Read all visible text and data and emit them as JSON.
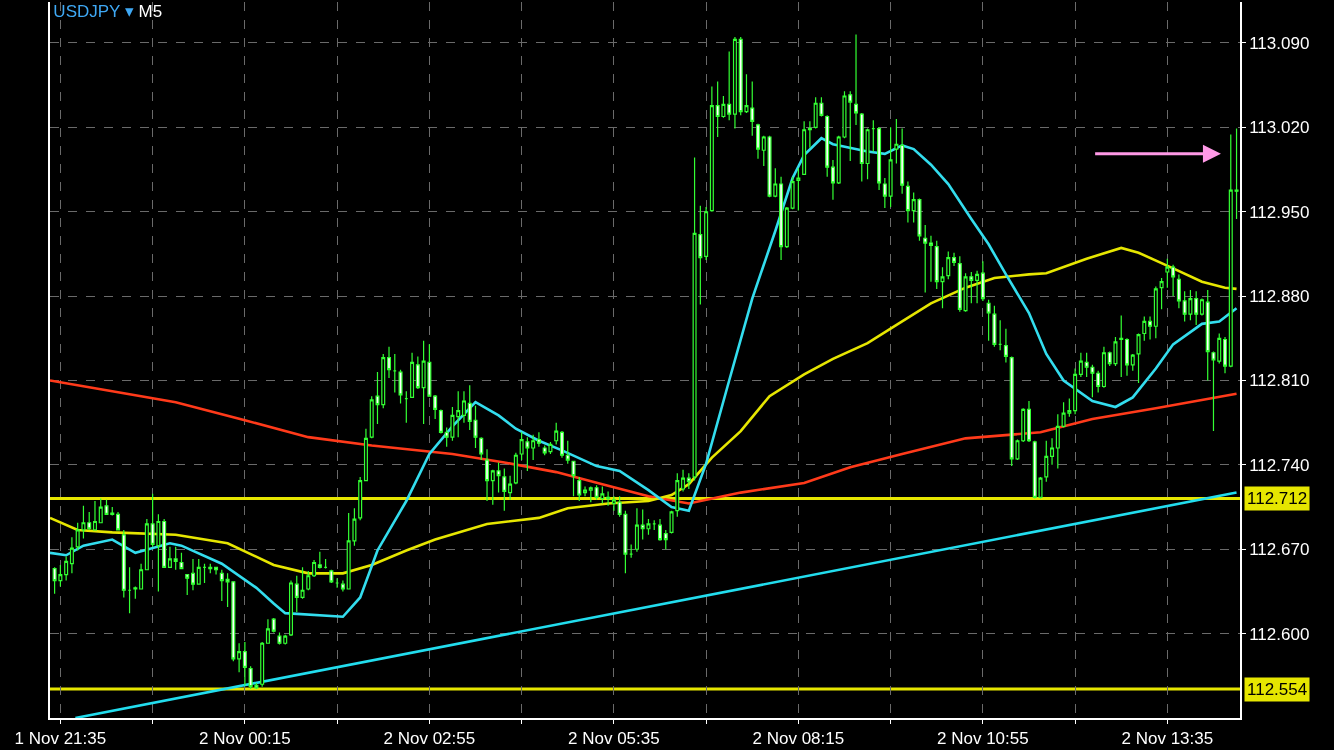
{
  "chart_data": {
    "type": "candlestick",
    "title": "USDJPY ▾ M5",
    "color": "#33ff33",
    "grid": true,
    "x": [
      "--11-01T21:30",
      "--11-01T21:35",
      "--11-01T21:40",
      "--11-01T21:45",
      "--11-01T21:50",
      "--11-01T21:55",
      "--11-01T22:00",
      "--11-01T22:05",
      "--11-01T22:10",
      "--11-01T22:15",
      "--11-01T22:20",
      "--11-01T22:25",
      "--11-01T22:30",
      "--11-01T22:35",
      "--11-01T22:40",
      "--11-01T22:45",
      "--11-01T22:50",
      "--11-01T22:55",
      "--11-01T23:00",
      "--11-01T23:05",
      "--11-01T23:10",
      "--11-01T23:15",
      "--11-01T23:20",
      "--11-01T23:25",
      "--11-01T23:30",
      "--11-01T23:35",
      "--11-01T23:40",
      "--11-01T23:45",
      "--11-01T23:50",
      "--11-01T23:55",
      "--11-02T00:00",
      "--11-02T00:05",
      "--11-02T00:10",
      "--11-02T00:15",
      "--11-02T00:20",
      "--11-02T00:25",
      "--11-02T00:30",
      "--11-02T00:35",
      "--11-02T00:40",
      "--11-02T00:45",
      "--11-02T00:50",
      "--11-02T00:55",
      "--11-02T01:00",
      "--11-02T01:05",
      "--11-02T01:10",
      "--11-02T01:15",
      "--11-02T01:20",
      "--11-02T01:25",
      "--11-02T01:30",
      "--11-02T01:35",
      "--11-02T01:40",
      "--11-02T01:45",
      "--11-02T01:50",
      "--11-02T01:55",
      "--11-02T02:00",
      "--11-02T02:05",
      "--11-02T02:10",
      "--11-02T02:15",
      "--11-02T02:20",
      "--11-02T02:25",
      "--11-02T02:30",
      "--11-02T02:35",
      "--11-02T02:40",
      "--11-02T02:45",
      "--11-02T02:50",
      "--11-02T02:55",
      "--11-02T03:00",
      "--11-02T03:05",
      "--11-02T03:10",
      "--11-02T03:15",
      "--11-02T03:20",
      "--11-02T03:25",
      "--11-02T03:30",
      "--11-02T03:35",
      "--11-02T03:40",
      "--11-02T03:45",
      "--11-02T03:50",
      "--11-02T03:55",
      "--11-02T04:00",
      "--11-02T04:05",
      "--11-02T04:10",
      "--11-02T04:15",
      "--11-02T04:20",
      "--11-02T04:25",
      "--11-02T04:30",
      "--11-02T04:35",
      "--11-02T04:40",
      "--11-02T04:45",
      "--11-02T04:50",
      "--11-02T04:55",
      "--11-02T05:00",
      "--11-02T05:05",
      "--11-02T05:10",
      "--11-02T05:15",
      "--11-02T05:20",
      "--11-02T05:25",
      "--11-02T05:30",
      "--11-02T05:35",
      "--11-02T05:40",
      "--11-02T05:45",
      "--11-02T05:50",
      "--11-02T05:55",
      "--11-02T06:00",
      "--11-02T06:05",
      "--11-02T06:10",
      "--11-02T06:15",
      "--11-02T06:20",
      "--11-02T06:25",
      "--11-02T06:30",
      "--11-02T06:35",
      "--11-02T06:40",
      "--11-02T06:45",
      "--11-02T06:50",
      "--11-02T06:55",
      "--11-02T07:00",
      "--11-02T07:05",
      "--11-02T07:10",
      "--11-02T07:15",
      "--11-02T07:20",
      "--11-02T07:25",
      "--11-02T07:30",
      "--11-02T07:35",
      "--11-02T07:40",
      "--11-02T07:45",
      "--11-02T07:50",
      "--11-02T07:55",
      "--11-02T08:00",
      "--11-02T08:05",
      "--11-02T08:10",
      "--11-02T08:15",
      "--11-02T08:20",
      "--11-02T08:25",
      "--11-02T08:30",
      "--11-02T08:35",
      "--11-02T08:40",
      "--11-02T08:45",
      "--11-02T08:50",
      "--11-02T08:55",
      "--11-02T09:00",
      "--11-02T09:05",
      "--11-02T09:10",
      "--11-02T09:15",
      "--11-02T09:20",
      "--11-02T09:25",
      "--11-02T09:30",
      "--11-02T09:35",
      "--11-02T09:40",
      "--11-02T09:45",
      "--11-02T09:50",
      "--11-02T09:55",
      "--11-02T10:00",
      "--11-02T10:05",
      "--11-02T10:10",
      "--11-02T10:15",
      "--11-02T10:20",
      "--11-02T10:25",
      "--11-02T10:30",
      "--11-02T10:35",
      "--11-02T10:40",
      "--11-02T10:45",
      "--11-02T10:50",
      "--11-02T10:55",
      "--11-02T11:00",
      "--11-02T11:05",
      "--11-02T11:10",
      "--11-02T11:15",
      "--11-02T11:20",
      "--11-02T11:25",
      "--11-02T11:30",
      "--11-02T11:35",
      "--11-02T11:40",
      "--11-02T11:45",
      "--11-02T11:50",
      "--11-02T11:55",
      "--11-02T12:00",
      "--11-02T12:05",
      "--11-02T12:10",
      "--11-02T12:15",
      "--11-02T12:20",
      "--11-02T12:25",
      "--11-02T12:30",
      "--11-02T12:35",
      "--11-02T12:40",
      "--11-02T12:45",
      "--11-02T12:50",
      "--11-02T12:55",
      "--11-02T13:00",
      "--11-02T13:05",
      "--11-02T13:10",
      "--11-02T13:15",
      "--11-02T13:20",
      "--11-02T13:25",
      "--11-02T13:30",
      "--11-02T13:35",
      "--11-02T13:40",
      "--11-02T13:45",
      "--11-02T13:50",
      "--11-02T13:55",
      "--11-02T14:00",
      "--11-02T14:05",
      "--11-02T14:10",
      "--11-02T14:15",
      "--11-02T14:20",
      "--11-02T14:25",
      "--11-02T14:30",
      "--11-02T14:35"
    ],
    "ohlc": [
      [
        112.654,
        112.655,
        112.633,
        112.644
      ],
      [
        112.644,
        112.657,
        112.639,
        112.649
      ],
      [
        112.649,
        112.664,
        112.644,
        112.66
      ],
      [
        112.658,
        112.68,
        112.65,
        112.671
      ],
      [
        112.672,
        112.692,
        112.669,
        112.686
      ],
      [
        112.686,
        112.706,
        112.679,
        112.692
      ],
      [
        112.692,
        112.701,
        112.686,
        112.687
      ],
      [
        112.686,
        112.71,
        112.686,
        112.693
      ],
      [
        112.692,
        112.712,
        112.692,
        112.705
      ],
      [
        112.706,
        112.711,
        112.699,
        112.699
      ],
      [
        112.7,
        112.705,
        112.698,
        112.699
      ],
      [
        112.699,
        112.701,
        112.686,
        112.686
      ],
      [
        112.682,
        112.686,
        112.63,
        112.636
      ],
      [
        112.636,
        112.655,
        112.617,
        112.636
      ],
      [
        112.637,
        112.639,
        112.629,
        112.638
      ],
      [
        112.637,
        112.658,
        112.637,
        112.653
      ],
      [
        112.653,
        112.695,
        112.653,
        112.691
      ],
      [
        112.691,
        112.716,
        112.672,
        112.674
      ],
      [
        112.673,
        112.699,
        112.635,
        112.693
      ],
      [
        112.693,
        112.695,
        112.655,
        112.655
      ],
      [
        112.655,
        112.672,
        112.655,
        112.662
      ],
      [
        112.662,
        112.672,
        112.653,
        112.66
      ],
      [
        112.659,
        112.667,
        112.654,
        112.654
      ],
      [
        112.649,
        112.649,
        112.632,
        112.646
      ],
      [
        112.65,
        112.662,
        112.636,
        112.641
      ],
      [
        112.641,
        112.662,
        112.641,
        112.655
      ],
      [
        112.655,
        112.658,
        112.642,
        112.655
      ],
      [
        112.655,
        112.658,
        112.65,
        112.654
      ],
      [
        112.655,
        112.655,
        112.649,
        112.653
      ],
      [
        112.65,
        112.653,
        112.627,
        112.644
      ],
      [
        112.645,
        112.65,
        112.622,
        112.643
      ],
      [
        112.643,
        112.643,
        112.577,
        112.579
      ],
      [
        112.579,
        112.592,
        112.568,
        112.585
      ],
      [
        112.585,
        112.593,
        112.557,
        112.572
      ],
      [
        112.571,
        112.573,
        112.554,
        112.556
      ],
      [
        112.557,
        112.559,
        112.554,
        112.555
      ],
      [
        112.558,
        112.593,
        112.556,
        112.592
      ],
      [
        112.592,
        112.612,
        112.592,
        112.604
      ],
      [
        112.612,
        112.613,
        112.601,
        112.602
      ],
      [
        112.598,
        112.601,
        112.591,
        112.592
      ],
      [
        112.592,
        112.599,
        112.591,
        112.598
      ],
      [
        112.599,
        112.644,
        112.598,
        112.642
      ],
      [
        112.641,
        112.648,
        112.618,
        112.63
      ],
      [
        112.63,
        112.655,
        112.629,
        112.636
      ],
      [
        112.637,
        112.652,
        112.636,
        112.648
      ],
      [
        112.648,
        112.661,
        112.647,
        112.659
      ],
      [
        112.657,
        112.668,
        112.654,
        112.655
      ],
      [
        112.655,
        112.662,
        112.654,
        112.655
      ],
      [
        112.652,
        112.653,
        112.642,
        112.643
      ],
      [
        112.642,
        112.646,
        112.638,
        112.642
      ],
      [
        112.641,
        112.644,
        112.635,
        112.637
      ],
      [
        112.637,
        112.7,
        112.637,
        112.677
      ],
      [
        112.677,
        112.704,
        112.673,
        112.695
      ],
      [
        112.696,
        112.73,
        112.694,
        112.727
      ],
      [
        112.727,
        112.77,
        112.727,
        112.762
      ],
      [
        112.763,
        112.797,
        112.762,
        112.794
      ],
      [
        112.797,
        112.817,
        112.774,
        112.79
      ],
      [
        112.79,
        112.832,
        112.787,
        112.829
      ],
      [
        112.829,
        112.838,
        112.812,
        112.819
      ],
      [
        112.818,
        112.832,
        112.8,
        112.818
      ],
      [
        112.817,
        112.819,
        112.791,
        112.798
      ],
      [
        112.795,
        112.801,
        112.775,
        112.795
      ],
      [
        112.796,
        112.833,
        112.796,
        112.825
      ],
      [
        112.823,
        112.83,
        112.803,
        112.804
      ],
      [
        112.804,
        112.843,
        112.774,
        112.826
      ],
      [
        112.825,
        112.84,
        112.797,
        112.797
      ],
      [
        112.797,
        112.798,
        112.778,
        112.786
      ],
      [
        112.785,
        112.786,
        112.766,
        112.767
      ],
      [
        112.767,
        112.771,
        112.755,
        112.763
      ],
      [
        112.763,
        112.788,
        112.76,
        112.781
      ],
      [
        112.78,
        112.801,
        112.763,
        112.785
      ],
      [
        112.781,
        112.801,
        112.775,
        112.793
      ],
      [
        112.791,
        112.806,
        112.769,
        112.776
      ],
      [
        112.777,
        112.789,
        112.754,
        112.763
      ],
      [
        112.762,
        112.763,
        112.744,
        112.749
      ],
      [
        112.744,
        112.753,
        112.71,
        112.727
      ],
      [
        112.727,
        112.736,
        112.707,
        112.735
      ],
      [
        112.735,
        112.742,
        112.717,
        112.731
      ],
      [
        112.73,
        112.737,
        112.702,
        112.718
      ],
      [
        112.717,
        112.731,
        112.711,
        112.724
      ],
      [
        112.725,
        112.75,
        112.724,
        112.748
      ],
      [
        112.749,
        112.767,
        112.744,
        112.761
      ],
      [
        112.759,
        112.763,
        112.735,
        112.754
      ],
      [
        112.754,
        112.765,
        112.744,
        112.76
      ],
      [
        112.761,
        112.767,
        112.755,
        112.758
      ],
      [
        112.754,
        112.756,
        112.748,
        112.75
      ],
      [
        112.751,
        112.759,
        112.749,
        112.757
      ],
      [
        112.76,
        112.775,
        112.757,
        112.768
      ],
      [
        112.767,
        112.768,
        112.746,
        112.748
      ],
      [
        112.748,
        112.76,
        112.741,
        112.744
      ],
      [
        112.743,
        112.743,
        112.714,
        112.731
      ],
      [
        112.727,
        112.73,
        112.71,
        112.715
      ],
      [
        112.717,
        112.722,
        112.714,
        112.719
      ],
      [
        112.719,
        112.722,
        112.709,
        112.721
      ],
      [
        112.721,
        112.723,
        112.711,
        112.713
      ],
      [
        112.712,
        112.722,
        112.708,
        112.716
      ],
      [
        112.713,
        112.718,
        112.706,
        112.712
      ],
      [
        112.708,
        112.714,
        112.702,
        112.711
      ],
      [
        112.709,
        112.714,
        112.697,
        112.699
      ],
      [
        112.699,
        112.702,
        112.65,
        112.666
      ],
      [
        112.666,
        112.674,
        112.663,
        112.666
      ],
      [
        112.67,
        112.704,
        112.668,
        112.69
      ],
      [
        112.69,
        112.703,
        112.678,
        112.687
      ],
      [
        112.687,
        112.695,
        112.682,
        112.691
      ],
      [
        112.691,
        112.694,
        112.686,
        112.691
      ],
      [
        112.69,
        112.695,
        112.677,
        112.678
      ],
      [
        112.683,
        112.686,
        112.67,
        112.678
      ],
      [
        112.684,
        112.702,
        112.683,
        112.701
      ],
      [
        112.702,
        112.733,
        112.697,
        112.727
      ],
      [
        112.72,
        112.736,
        112.718,
        112.729
      ],
      [
        112.729,
        112.733,
        112.72,
        112.726
      ],
      [
        112.73,
        112.995,
        112.727,
        112.932
      ],
      [
        112.931,
        112.955,
        112.873,
        112.912
      ],
      [
        112.913,
        112.954,
        112.91,
        112.95
      ],
      [
        112.951,
        113.054,
        112.95,
        113.038
      ],
      [
        113.038,
        113.058,
        113.012,
        113.029
      ],
      [
        113.029,
        113.046,
        113.028,
        113.039
      ],
      [
        113.039,
        113.083,
        113.026,
        113.031
      ],
      [
        113.031,
        113.095,
        113.019,
        113.093
      ],
      [
        113.093,
        113.095,
        113.03,
        113.033
      ],
      [
        113.033,
        113.064,
        113.032,
        113.038
      ],
      [
        113.036,
        113.058,
        113.013,
        113.025
      ],
      [
        113.022,
        113.023,
        112.994,
        113.002
      ],
      [
        113.001,
        113.013,
        112.988,
        113.012
      ],
      [
        113.012,
        113.013,
        112.962,
        112.963
      ],
      [
        112.963,
        112.986,
        112.962,
        112.973
      ],
      [
        112.973,
        112.979,
        112.91,
        112.921
      ],
      [
        112.921,
        112.954,
        112.92,
        112.953
      ],
      [
        112.953,
        112.979,
        112.952,
        112.975
      ],
      [
        112.976,
        112.986,
        112.951,
        112.978
      ],
      [
        112.981,
        113.025,
        112.981,
        113.018
      ],
      [
        113.018,
        113.025,
        113.003,
        113.019
      ],
      [
        113.02,
        113.045,
        113.019,
        113.04
      ],
      [
        113.04,
        113.045,
        113.029,
        113.03
      ],
      [
        113.029,
        113.03,
        112.979,
        112.987
      ],
      [
        112.987,
        112.993,
        112.96,
        112.974
      ],
      [
        112.974,
        113.013,
        112.973,
        113.012
      ],
      [
        113.012,
        113.05,
        113.011,
        113.046
      ],
      [
        113.047,
        113.05,
        112.992,
        113.041
      ],
      [
        113.039,
        113.097,
        113.022,
        113.032
      ],
      [
        113.031,
        113.032,
        112.975,
        112.99
      ],
      [
        112.99,
        113.019,
        112.977,
        113.018
      ],
      [
        113.019,
        113.026,
        113.0,
        113.019
      ],
      [
        113.019,
        113.02,
        112.968,
        112.974
      ],
      [
        112.973,
        112.978,
        112.953,
        112.963
      ],
      [
        112.963,
        113.02,
        112.954,
        112.993
      ],
      [
        113.002,
        113.027,
        112.99,
        113.006
      ],
      [
        113.005,
        113.019,
        112.965,
        112.972
      ],
      [
        112.971,
        112.975,
        112.941,
        112.951
      ],
      [
        112.951,
        112.966,
        112.941,
        112.96
      ],
      [
        112.96,
        112.961,
        112.926,
        112.93
      ],
      [
        112.928,
        112.939,
        112.883,
        112.924
      ],
      [
        112.924,
        112.93,
        112.892,
        112.922
      ],
      [
        112.921,
        112.926,
        112.886,
        112.892
      ],
      [
        112.892,
        112.904,
        112.87,
        112.896
      ],
      [
        112.897,
        112.917,
        112.894,
        112.912
      ],
      [
        112.912,
        112.916,
        112.905,
        112.908
      ],
      [
        112.907,
        112.913,
        112.867,
        112.869
      ],
      [
        112.868,
        112.899,
        112.867,
        112.896
      ],
      [
        112.896,
        112.9,
        112.874,
        112.893
      ],
      [
        112.893,
        112.901,
        112.874,
        112.898
      ],
      [
        112.899,
        112.909,
        112.876,
        112.878
      ],
      [
        112.874,
        112.877,
        112.843,
        112.866
      ],
      [
        112.865,
        112.872,
        112.838,
        112.84
      ],
      [
        112.84,
        112.86,
        112.835,
        112.84
      ],
      [
        112.839,
        112.853,
        112.825,
        112.83
      ],
      [
        112.829,
        112.83,
        112.739,
        112.745
      ],
      [
        112.745,
        112.761,
        112.744,
        112.76
      ],
      [
        112.76,
        112.787,
        112.759,
        112.786
      ],
      [
        112.786,
        112.793,
        112.759,
        112.76
      ],
      [
        112.759,
        112.76,
        112.712,
        112.713
      ],
      [
        112.713,
        112.73,
        112.712,
        112.729
      ],
      [
        112.73,
        112.76,
        112.726,
        112.747
      ],
      [
        112.747,
        112.762,
        112.74,
        112.754
      ],
      [
        112.754,
        112.782,
        112.737,
        112.772
      ],
      [
        112.772,
        112.792,
        112.771,
        112.783
      ],
      [
        112.783,
        112.795,
        112.78,
        112.785
      ],
      [
        112.785,
        112.82,
        112.782,
        112.815
      ],
      [
        112.815,
        112.833,
        112.813,
        112.826
      ],
      [
        112.825,
        112.833,
        112.813,
        112.821
      ],
      [
        112.821,
        112.823,
        112.796,
        112.816
      ],
      [
        112.816,
        112.818,
        112.8,
        112.805
      ],
      [
        112.805,
        112.838,
        112.804,
        112.833
      ],
      [
        112.833,
        112.834,
        112.822,
        112.824
      ],
      [
        112.824,
        112.846,
        112.822,
        112.842
      ],
      [
        112.844,
        112.864,
        112.813,
        112.845
      ],
      [
        112.844,
        112.845,
        112.814,
        112.823
      ],
      [
        112.823,
        112.832,
        112.818,
        112.831
      ],
      [
        112.832,
        112.849,
        112.808,
        112.848
      ],
      [
        112.849,
        112.863,
        112.843,
        112.859
      ],
      [
        112.859,
        112.863,
        112.844,
        112.855
      ],
      [
        112.855,
        112.888,
        112.845,
        112.886
      ],
      [
        112.887,
        112.895,
        112.869,
        112.892
      ],
      [
        112.9,
        112.911,
        112.887,
        112.904
      ],
      [
        112.904,
        112.906,
        112.88,
        112.896
      ],
      [
        112.894,
        112.898,
        112.87,
        112.876
      ],
      [
        112.876,
        112.884,
        112.859,
        112.865
      ],
      [
        112.865,
        112.885,
        112.86,
        112.878
      ],
      [
        112.878,
        112.884,
        112.856,
        112.865
      ],
      [
        112.865,
        112.878,
        112.864,
        112.877
      ],
      [
        112.875,
        112.885,
        112.81,
        112.834
      ],
      [
        112.833,
        112.834,
        112.768,
        112.827
      ],
      [
        112.826,
        112.849,
        112.824,
        112.845
      ],
      [
        112.844,
        112.846,
        112.816,
        112.822
      ],
      [
        112.822,
        113.014,
        112.821,
        112.968
      ],
      [
        112.968,
        113.019,
        112.944,
        112.967
      ]
    ],
    "series": [
      {
        "type": "line",
        "color": "#ff3a1a",
        "x": [
          "--11-01T21:26",
          "--11-01T22:20",
          "--11-01T23:15",
          "--11-02T00:15",
          "--11-02T01:10",
          "--11-02T02:05",
          "--11-02T03:15",
          "--11-02T04:00",
          "--11-02T04:45",
          "--11-02T05:25",
          "--11-02T06:05",
          "--11-02T06:40",
          "--11-02T07:25",
          "--11-02T08:20",
          "--11-02T09:00",
          "--11-02T09:45",
          "--11-02T10:40",
          "--11-02T11:45",
          "--11-02T12:30",
          "--11-02T13:25",
          "--11-02T14:35"
        ],
        "values": [
          112.81,
          112.801,
          112.792,
          112.777,
          112.763,
          112.756,
          112.749,
          112.742,
          112.734,
          112.724,
          112.714,
          112.708,
          112.717,
          112.725,
          112.738,
          112.749,
          112.762,
          112.767,
          112.778,
          112.787,
          112.799
        ]
      },
      {
        "type": "line",
        "color": "#e6e600",
        "x": [
          "--11-01T21:26",
          "--11-01T21:50",
          "--11-01T22:20",
          "--11-01T23:15",
          "--11-02T00:00",
          "--11-02T00:40",
          "--11-02T01:10",
          "--11-02T01:40",
          "--11-02T02:05",
          "--11-02T02:35",
          "--11-02T03:00",
          "--11-02T03:45",
          "--11-02T04:30",
          "--11-02T04:55",
          "--11-02T05:30",
          "--11-02T06:05",
          "--11-02T06:25",
          "--11-02T06:40",
          "--11-02T07:00",
          "--11-02T07:25",
          "--11-02T07:50",
          "--11-02T08:20",
          "--11-02T08:45",
          "--11-02T09:15",
          "--11-02T09:45",
          "--11-02T10:10",
          "--11-02T10:40",
          "--11-02T11:05",
          "--11-02T11:35",
          "--11-02T11:50",
          "--11-02T12:25",
          "--11-02T12:55",
          "--11-02T13:10",
          "--11-02T13:40",
          "--11-02T14:05",
          "--11-02T14:25",
          "--11-02T14:35"
        ],
        "values": [
          112.696,
          112.686,
          112.684,
          112.682,
          112.675,
          112.657,
          112.65,
          112.65,
          112.657,
          112.669,
          112.678,
          112.691,
          112.696,
          112.704,
          112.708,
          112.71,
          112.715,
          112.724,
          112.746,
          112.768,
          112.797,
          112.815,
          112.828,
          112.841,
          112.859,
          112.874,
          112.887,
          112.895,
          112.898,
          112.899,
          112.911,
          112.92,
          112.916,
          112.903,
          112.892,
          112.887,
          112.886
        ]
      },
      {
        "type": "line",
        "color": "#33ddee",
        "x": [
          "--11-01T21:26",
          "--11-01T21:40",
          "--11-01T21:55",
          "--11-01T22:20",
          "--11-01T22:40",
          "--11-01T23:10",
          "--11-01T23:20",
          "--11-01T23:55",
          "--11-02T00:25",
          "--11-02T00:40",
          "--11-02T00:50",
          "--11-02T01:40",
          "--11-02T01:55",
          "--11-02T02:10",
          "--11-02T02:35",
          "--11-02T02:55",
          "--11-02T03:15",
          "--11-02T03:35",
          "--11-02T03:55",
          "--11-02T04:10",
          "--11-02T04:30",
          "--11-02T04:50",
          "--11-02T05:20",
          "--11-02T05:40",
          "--11-02T06:05",
          "--11-02T06:25",
          "--11-02T06:40",
          "--11-02T06:55",
          "--11-02T07:15",
          "--11-02T07:35",
          "--11-02T07:55",
          "--11-02T08:10",
          "--11-02T08:20",
          "--11-02T08:35",
          "--11-02T08:45",
          "--11-02T09:15",
          "--11-02T09:30",
          "--11-02T09:45",
          "--11-02T09:55",
          "--11-02T10:10",
          "--11-02T10:25",
          "--11-02T10:45",
          "--11-02T11:00",
          "--11-02T11:15",
          "--11-02T11:35",
          "--11-02T11:50",
          "--11-02T12:05",
          "--11-02T12:30",
          "--11-02T12:50",
          "--11-02T13:05",
          "--11-02T13:25",
          "--11-02T13:40",
          "--11-02T14:05",
          "--11-02T14:20",
          "--11-02T14:35"
        ],
        "values": [
          112.667,
          112.665,
          112.673,
          112.678,
          112.667,
          112.675,
          112.673,
          112.658,
          112.638,
          112.625,
          112.617,
          112.614,
          112.63,
          112.669,
          112.71,
          112.749,
          112.772,
          112.792,
          112.781,
          112.77,
          112.76,
          112.752,
          112.739,
          112.735,
          112.719,
          112.705,
          112.702,
          112.741,
          112.81,
          112.878,
          112.934,
          112.978,
          112.997,
          113.011,
          113.006,
          113.0,
          112.998,
          113.005,
          113.002,
          112.989,
          112.973,
          112.944,
          112.923,
          112.898,
          112.866,
          112.832,
          112.81,
          112.793,
          112.788,
          112.796,
          112.82,
          112.84,
          112.857,
          112.859,
          112.87
        ]
      },
      {
        "type": "line",
        "color": "#22ddee",
        "x": [
          "--11-01T21:48",
          "--11-02T14:35"
        ],
        "values": [
          112.53,
          112.717
        ]
      }
    ],
    "ref_lines": [
      {
        "axis": "y",
        "value": 112.712,
        "label": "112.712",
        "color": "#e6e600"
      },
      {
        "axis": "y",
        "value": 112.554,
        "label": "112.554",
        "color": "#e6e600"
      }
    ],
    "xlim": [
      "--11-01T21:26",
      "--11-02T14:38"
    ],
    "xticks": [
      {
        "value": "--11-01T21:35",
        "label": "1 Nov 21:35"
      },
      {
        "value": "--11-01T22:55",
        "label": null
      },
      {
        "value": "--11-02T00:15",
        "label": "2 Nov 00:15"
      },
      {
        "value": "--11-02T01:35",
        "label": null
      },
      {
        "value": "--11-02T02:55",
        "label": "2 Nov 02:55"
      },
      {
        "value": "--11-02T04:15",
        "label": null
      },
      {
        "value": "--11-02T05:35",
        "label": "2 Nov 05:35"
      },
      {
        "value": "--11-02T06:55",
        "label": null
      },
      {
        "value": "--11-02T08:15",
        "label": "2 Nov 08:15"
      },
      {
        "value": "--11-02T09:35",
        "label": null
      },
      {
        "value": "--11-02T10:55",
        "label": "2 Nov 10:55"
      },
      {
        "value": "--11-02T12:15",
        "label": null
      },
      {
        "value": "--11-02T13:35",
        "label": "2 Nov 13:35"
      }
    ],
    "ylim": [
      112.53,
      113.124
    ],
    "yticks": [
      {
        "value": 112.6,
        "label": "112.600"
      },
      {
        "value": 112.67,
        "label": "112.670"
      },
      {
        "value": 112.74,
        "label": "112.740"
      },
      {
        "value": 112.81,
        "label": "112.810"
      },
      {
        "value": 112.88,
        "label": "112.880"
      },
      {
        "value": 112.95,
        "label": "112.950"
      },
      {
        "value": 113.02,
        "label": "113.020"
      },
      {
        "value": 113.09,
        "label": "113.090"
      }
    ]
  }
}
